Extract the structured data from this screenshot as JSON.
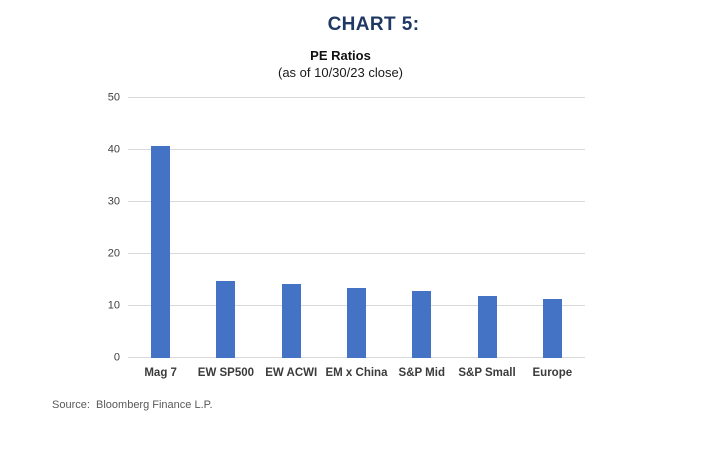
{
  "header": {
    "title": "CHART 5:",
    "subtitle": "PE Ratios",
    "date_note": "(as of 10/30/23 close)"
  },
  "source": {
    "text": "Source:  Bloomberg Finance L.P."
  },
  "colors": {
    "title": "#1F3864",
    "bar": "#4472C4",
    "gridline": "#D9D9D9",
    "axis_text": "#404040",
    "category_text": "#3b3b3b",
    "source_text": "#595959"
  },
  "chart_data": {
    "type": "bar",
    "title": "PE Ratios",
    "subtitle": "(as of 10/30/23 close)",
    "categories": [
      "Mag 7",
      "EW SP500",
      "EW ACWI",
      "EM x China",
      "S&P Mid",
      "S&P Small",
      "Europe"
    ],
    "values": [
      40.7,
      14.8,
      14.2,
      13.5,
      12.8,
      11.9,
      11.4
    ],
    "xlabel": "",
    "ylabel": "",
    "ylim": [
      0,
      50
    ],
    "yticks": [
      0,
      10,
      20,
      30,
      40,
      50
    ],
    "grid": true,
    "legend": false,
    "bar_color": "#4472C4",
    "gridline_color": "#D9D9D9"
  }
}
